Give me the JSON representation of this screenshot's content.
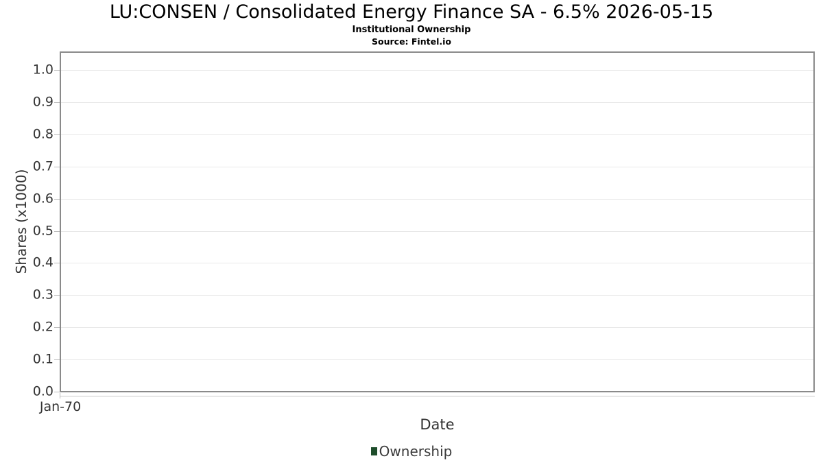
{
  "chart_data": {
    "type": "line",
    "title": "LU:CONSEN / Consolidated Energy Finance SA - 6.5% 2026-05-15",
    "subtitle": "Institutional Ownership",
    "source_note": "Source: Fintel.io",
    "xlabel": "Date",
    "ylabel": "Shares (x1000)",
    "x_ticks": [
      "Jan-70"
    ],
    "y_ticks": [
      "0.0",
      "0.1",
      "0.2",
      "0.3",
      "0.4",
      "0.5",
      "0.6",
      "0.7",
      "0.8",
      "0.9",
      "1.0"
    ],
    "ylim": [
      0.0,
      1.06
    ],
    "grid": "horizontal",
    "legend": {
      "position": "bottom-center",
      "entries": [
        {
          "label": "Ownership",
          "color": "#1e4d2b"
        }
      ]
    },
    "series": [
      {
        "name": "Ownership",
        "color": "#1e4d2b",
        "x": [],
        "values": []
      }
    ]
  },
  "colors": {
    "background": "#ffffff",
    "plot_border": "#8a8a8a",
    "gridline": "#e8e8e8",
    "tick_mark": "#bdbdbd",
    "title_text": "#000000",
    "axis_text": "#333333",
    "legend_green": "#1e4d2b"
  }
}
